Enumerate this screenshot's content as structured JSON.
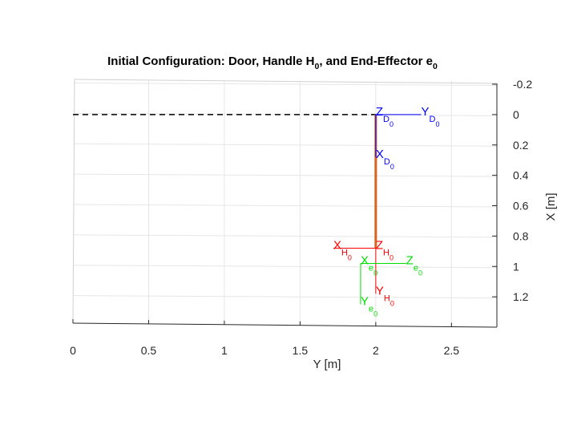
{
  "chart_data": {
    "type": "line",
    "title": "Initial Configuration: Door, Handle H",
    "title_sub": "0",
    "title_mid": ", and End-Effector e",
    "title_sub2": "0",
    "xlabel": "Y [m]",
    "ylabel": "X [m]",
    "xlim": [
      0,
      2.8
    ],
    "ylim": [
      -0.2,
      1.4
    ],
    "y_direction": "reversed",
    "y_axis_side": "right",
    "grid": true,
    "xticks": [
      0,
      0.5,
      1,
      1.5,
      2,
      2.5
    ],
    "xtick_labels": [
      "0",
      "0.5",
      "1",
      "1.5",
      "2",
      "2.5"
    ],
    "yticks": [
      -0.2,
      0,
      0.2,
      0.4,
      0.6,
      0.8,
      1,
      1.2
    ],
    "ytick_labels": [
      "-0.2",
      "0",
      "0.2",
      "0.4",
      "0.6",
      "0.8",
      "1",
      "1.2"
    ],
    "series": [
      {
        "style": "dashed",
        "color": "#000000",
        "x": [
          0,
          2
        ],
        "y": [
          0,
          0
        ]
      },
      {
        "style": "solid",
        "color": "#d9621c",
        "x": [
          2,
          2
        ],
        "y": [
          0,
          0.88
        ]
      }
    ],
    "frames": [
      {
        "name": "D",
        "color": "#0000ff",
        "origin": [
          2,
          0
        ],
        "axes": [
          {
            "letter": "Y",
            "sub": "D",
            "subsub": "0",
            "tip": [
              2.3,
              0
            ],
            "label_at": [
              2.3,
              0
            ]
          },
          {
            "letter": "X",
            "sub": "D",
            "subsub": "0",
            "tip": [
              2,
              0.28
            ],
            "label_at": [
              2,
              0.28
            ]
          },
          {
            "letter": "Z",
            "sub": "D",
            "subsub": "0",
            "tip": [
              2,
              0
            ],
            "label_at": [
              2,
              0
            ]
          }
        ]
      },
      {
        "name": "H",
        "color": "#ff0000",
        "origin": [
          2,
          0.88
        ],
        "axes": [
          {
            "letter": "X",
            "sub": "H",
            "subsub": "0",
            "tip": [
              1.72,
              0.88
            ],
            "label_at": [
              1.72,
              0.88
            ]
          },
          {
            "letter": "Y",
            "sub": "H",
            "subsub": "0",
            "tip": [
              2,
              1.18
            ],
            "label_at": [
              2,
              1.18
            ]
          },
          {
            "letter": "Z",
            "sub": "H",
            "subsub": "0",
            "tip": [
              2,
              0.88
            ],
            "label_at": [
              2,
              0.88
            ]
          }
        ]
      },
      {
        "name": "e",
        "color": "#00dd00",
        "origin": [
          1.9,
          0.98
        ],
        "axes": [
          {
            "letter": "Z",
            "sub": "e",
            "subsub": "0",
            "tip": [
              2.2,
              0.98
            ],
            "label_at": [
              2.2,
              0.98
            ]
          },
          {
            "letter": "Y",
            "sub": "e",
            "subsub": "0",
            "tip": [
              1.9,
              1.25
            ],
            "label_at": [
              1.9,
              1.25
            ]
          },
          {
            "letter": "X",
            "sub": "e",
            "subsub": "0",
            "tip": [
              1.9,
              0.98
            ],
            "label_at": [
              1.9,
              0.98
            ]
          }
        ]
      }
    ]
  }
}
